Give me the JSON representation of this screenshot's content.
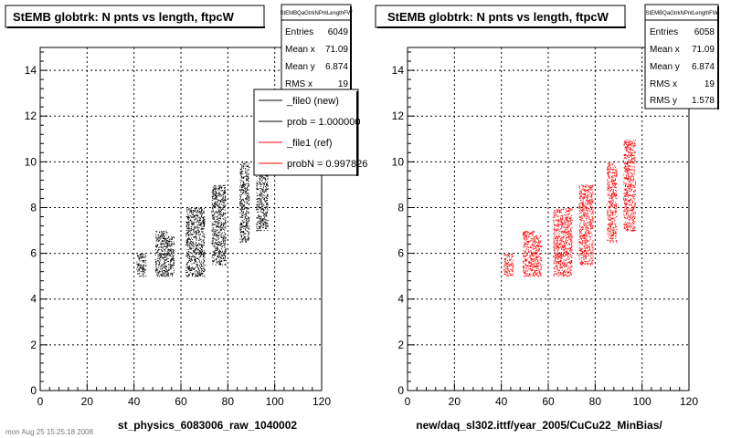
{
  "footer": "mon Aug 25 15:25:18 2008",
  "panels": [
    {
      "title": "StEMB globtrk: N pnts vs length, ftpcW",
      "stats": {
        "name": "StEMBQaGtrkNPntLengthFW",
        "rows": [
          {
            "label": "Entries",
            "value": "6049"
          },
          {
            "label": "Mean x",
            "value": "71.09"
          },
          {
            "label": "Mean y",
            "value": "6.874"
          },
          {
            "label": "RMS x",
            "value": "19"
          }
        ]
      },
      "legend": [
        {
          "label": "_file0 (new)",
          "color": "#000000"
        },
        {
          "label": "prob = 1.000000",
          "color": "#000000"
        },
        {
          "label": "_file1 (ref)",
          "color": "#ff0000"
        },
        {
          "label": "probN = 0.997826",
          "color": "#ff0000"
        }
      ],
      "xlabel": "st_physics_6083006_raw_1040002"
    },
    {
      "title": "StEMB globtrk: N pnts vs length, ftpcW",
      "stats": {
        "name": "StEMBQaGtrkNPntLengthFW",
        "rows": [
          {
            "label": "Entries",
            "value": "6058"
          },
          {
            "label": "Mean x",
            "value": "71.09"
          },
          {
            "label": "Mean y",
            "value": "6.874"
          },
          {
            "label": "RMS x",
            "value": "19"
          },
          {
            "label": "RMS y",
            "value": "1.578"
          }
        ]
      },
      "legend": [],
      "xlabel": "new/daq_sl302.ittf/year_2005/CuCu22_MinBias/"
    }
  ],
  "chart_data": [
    {
      "type": "scatter",
      "title": "StEMB globtrk: N pnts vs length, ftpcW",
      "xlabel": "st_physics_6083006_raw_1040002",
      "ylabel": "",
      "xlim": [
        0,
        120
      ],
      "ylim": [
        0,
        15
      ],
      "xticks": [
        0,
        20,
        40,
        60,
        80,
        100,
        120
      ],
      "yticks": [
        0,
        2,
        4,
        6,
        8,
        10,
        12,
        14
      ],
      "grid": true,
      "color": "#000000",
      "clusters": [
        {
          "x_range": [
            41,
            45
          ],
          "y_range": [
            5,
            6
          ]
        },
        {
          "x_range": [
            49,
            54
          ],
          "y_range": [
            5,
            7
          ]
        },
        {
          "x_range": [
            54,
            57
          ],
          "y_range": [
            5,
            6.8
          ]
        },
        {
          "x_range": [
            62,
            70
          ],
          "y_range": [
            5,
            8
          ]
        },
        {
          "x_range": [
            73,
            79
          ],
          "y_range": [
            5.5,
            9
          ]
        },
        {
          "x_range": [
            85,
            89
          ],
          "y_range": [
            6.5,
            10
          ]
        },
        {
          "x_range": [
            92,
            97
          ],
          "y_range": [
            7,
            11
          ]
        }
      ]
    },
    {
      "type": "scatter",
      "title": "StEMB globtrk: N pnts vs length, ftpcW",
      "xlabel": "new/daq_sl302.ittf/year_2005/CuCu22_MinBias/",
      "ylabel": "",
      "xlim": [
        0,
        120
      ],
      "ylim": [
        0,
        15
      ],
      "xticks": [
        0,
        20,
        40,
        60,
        80,
        100,
        120
      ],
      "yticks": [
        0,
        2,
        4,
        6,
        8,
        10,
        12,
        14
      ],
      "grid": true,
      "color": "#ff0000",
      "clusters": [
        {
          "x_range": [
            41,
            45
          ],
          "y_range": [
            5,
            6
          ]
        },
        {
          "x_range": [
            49,
            54
          ],
          "y_range": [
            5,
            7
          ]
        },
        {
          "x_range": [
            54,
            57
          ],
          "y_range": [
            5,
            6.8
          ]
        },
        {
          "x_range": [
            62,
            70
          ],
          "y_range": [
            5,
            8
          ]
        },
        {
          "x_range": [
            73,
            79
          ],
          "y_range": [
            5.5,
            9
          ]
        },
        {
          "x_range": [
            85,
            89
          ],
          "y_range": [
            6.5,
            10
          ]
        },
        {
          "x_range": [
            92,
            97
          ],
          "y_range": [
            7,
            11
          ]
        }
      ]
    }
  ]
}
